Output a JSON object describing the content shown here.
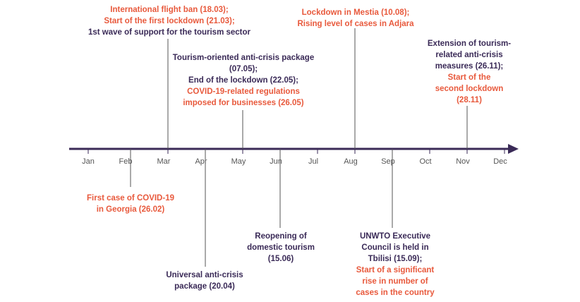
{
  "months": [
    "Jan",
    "Feb",
    "Mar",
    "Apr",
    "May",
    "Jun",
    "Jul",
    "Aug",
    "Sep",
    "Oct",
    "Nov",
    "Dec"
  ],
  "colors": {
    "axis": "#3a2a57",
    "highlight": "#e8593c",
    "text": "#3a2a57"
  },
  "events": [
    {
      "id": "mar",
      "lines": [
        {
          "text": "International  flight ban (18.03);",
          "color": "highlight"
        },
        {
          "text": "Start of the first lockdown (21.03);",
          "color": "highlight"
        },
        {
          "text": "1st wave of support for the tourism sector",
          "color": "text"
        }
      ]
    },
    {
      "id": "may",
      "lines": [
        {
          "text": "Tourism-oriented anti-crisis package",
          "color": "text"
        },
        {
          "text": "(07.05);",
          "color": "text"
        },
        {
          "text": "End of the lockdown (22.05);",
          "color": "text"
        },
        {
          "text": "COVID-19-related regulations",
          "color": "highlight"
        },
        {
          "text": "imposed  for businesses (26.05)",
          "color": "highlight"
        }
      ]
    },
    {
      "id": "aug",
      "lines": [
        {
          "text": "Lockdown in Mestia (10.08);",
          "color": "highlight"
        },
        {
          "text": "Rising  level of cases in Adjara",
          "color": "highlight"
        }
      ]
    },
    {
      "id": "nov",
      "lines": [
        {
          "text": "Extension of tourism-",
          "color": "text"
        },
        {
          "text": "related anti-crisis",
          "color": "text"
        },
        {
          "text": "measures (26.11);",
          "color": "text"
        },
        {
          "text": "Start of the",
          "color": "highlight"
        },
        {
          "text": "second lockdown",
          "color": "highlight"
        },
        {
          "text": "(28.11)",
          "color": "highlight"
        }
      ]
    },
    {
      "id": "feb",
      "lines": [
        {
          "text": "First case of COVID-19",
          "color": "highlight"
        },
        {
          "text": "in Georgia (26.02)",
          "color": "highlight"
        }
      ]
    },
    {
      "id": "apr",
      "lines": [
        {
          "text": "Universal anti-crisis",
          "color": "text"
        },
        {
          "text": "package (20.04)",
          "color": "text"
        }
      ]
    },
    {
      "id": "jun",
      "lines": [
        {
          "text": "Reopening of",
          "color": "text"
        },
        {
          "text": "domestic tourism",
          "color": "text"
        },
        {
          "text": "(15.06)",
          "color": "text"
        }
      ]
    },
    {
      "id": "sep",
      "lines": [
        {
          "text": "UNWTO Executive",
          "color": "text"
        },
        {
          "text": "Council is held in",
          "color": "text"
        },
        {
          "text": "Tbilisi  (15.09);",
          "color": "text"
        },
        {
          "text": "Start of a significant",
          "color": "highlight"
        },
        {
          "text": "rise in number of",
          "color": "highlight"
        },
        {
          "text": "cases in the country",
          "color": "highlight"
        }
      ]
    }
  ]
}
